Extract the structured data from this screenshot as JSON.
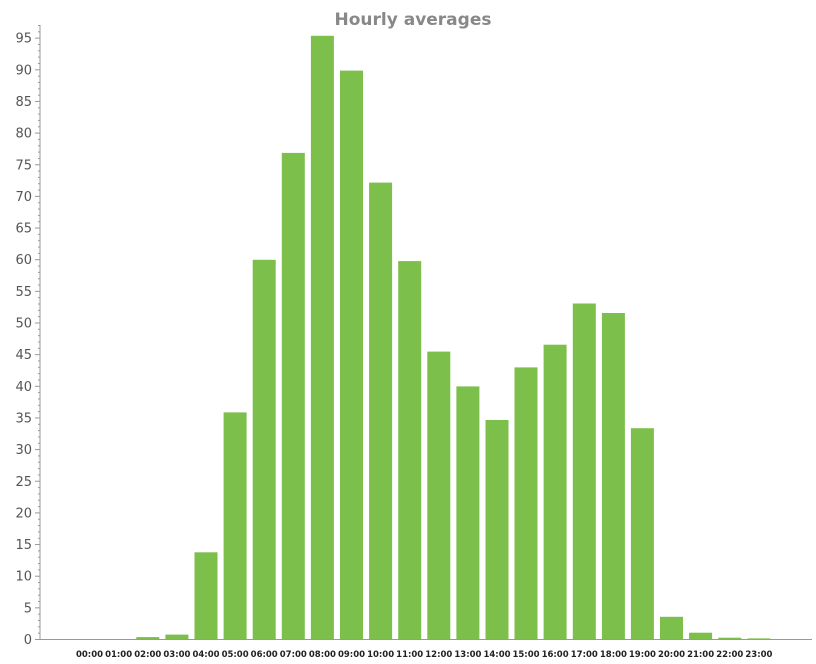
{
  "chart_data": {
    "type": "bar",
    "title": "Hourly averages",
    "xlabel": "",
    "ylabel": "",
    "ylim": [
      0,
      97
    ],
    "y_ticks": [
      0,
      5,
      10,
      15,
      20,
      25,
      30,
      35,
      40,
      45,
      50,
      55,
      60,
      65,
      70,
      75,
      80,
      85,
      90,
      95
    ],
    "grid": false,
    "legend": "none",
    "categories": [
      "00:00",
      "01:00",
      "02:00",
      "03:00",
      "04:00",
      "05:00",
      "06:00",
      "07:00",
      "08:00",
      "09:00",
      "10:00",
      "11:00",
      "12:00",
      "13:00",
      "14:00",
      "15:00",
      "16:00",
      "17:00",
      "18:00",
      "19:00",
      "20:00",
      "21:00",
      "22:00",
      "23:00"
    ],
    "values": [
      0,
      0,
      0.3,
      0.7,
      13.7,
      35.8,
      59.9,
      76.8,
      95.3,
      89.8,
      72.1,
      59.7,
      45.4,
      39.9,
      34.6,
      42.9,
      46.5,
      53.0,
      51.5,
      33.3,
      3.5,
      1.0,
      0.2,
      0.1
    ],
    "colors": {
      "bar": "#7cbf4a",
      "axis": "#999999",
      "title": "#888888"
    }
  }
}
